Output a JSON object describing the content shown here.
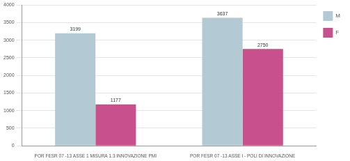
{
  "chart_data": {
    "type": "bar",
    "categories": [
      "POR FESR 07 -13 ASSE 1 MISURA 1.3 INNOVAZIONE PMI",
      "POR FESR 07 -13 ASSE I - POLI DI INNOVAZIONE"
    ],
    "series": [
      {
        "name": "M",
        "color": "#b3cad4",
        "values": [
          3199,
          3637
        ]
      },
      {
        "name": "F",
        "color": "#c8508d",
        "values": [
          1177,
          2750
        ]
      }
    ],
    "ylim": [
      0,
      4000
    ],
    "yticks": [
      0,
      500,
      1000,
      1500,
      2000,
      2500,
      3000,
      3500,
      4000
    ],
    "grid": true,
    "legend": "right",
    "data_labels": true
  }
}
